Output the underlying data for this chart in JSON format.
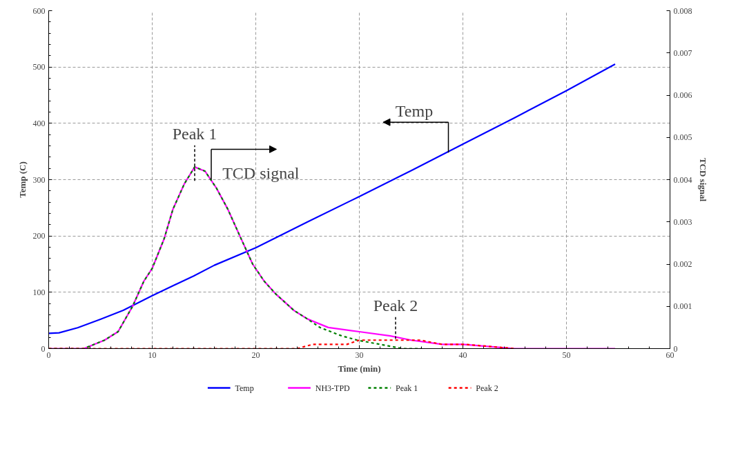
{
  "chart_data": {
    "type": "line",
    "xlabel": "Time (min)",
    "ylabel": "Temp (C)",
    "y2label": "TCD signal",
    "xlim": [
      0,
      60
    ],
    "xticks": [
      0,
      10,
      20,
      30,
      40,
      50,
      60
    ],
    "ylim": [
      0,
      600
    ],
    "yticks": [
      0,
      100,
      200,
      300,
      400,
      500,
      600
    ],
    "y2lim": [
      0,
      0.008
    ],
    "y2ticks": [
      0,
      0.001,
      0.002,
      0.003,
      0.004,
      0.005,
      0.006,
      0.007,
      0.008
    ],
    "grid": true,
    "legend": "bottom",
    "marker": "none",
    "series": [
      {
        "name": "Temp",
        "color": "#0000ff",
        "line_style": "solid",
        "x": [
          0,
          1,
          2.8,
          5,
          7.2,
          10,
          14,
          16,
          20,
          25,
          30,
          35,
          40,
          45,
          50,
          54.7
        ],
        "values": [
          27,
          28,
          37,
          52,
          68,
          94,
          129,
          148,
          179,
          225,
          270,
          316,
          363,
          410,
          458,
          505
        ]
      },
      {
        "name": "NH3-TPD",
        "color": "#ff00ff",
        "line_style": "solid",
        "axis": "y2",
        "x": [
          0,
          2,
          3.4,
          5.4,
          6.7,
          8.1,
          9.2,
          10,
          11.15,
          12,
          13.1,
          14.1,
          15.1,
          16.2,
          17.3,
          18.4,
          19.7,
          20.8,
          21.9,
          23.7,
          25,
          27,
          30,
          33,
          35,
          38,
          40,
          45,
          50,
          54.7
        ],
        "values": [
          0,
          0,
          0,
          0.0002,
          0.0004,
          0.001,
          0.0016,
          0.0019,
          0.0026,
          0.0033,
          0.0039,
          0.0043,
          0.0042,
          0.0038,
          0.0033,
          0.0027,
          0.002,
          0.0016,
          0.0013,
          0.0009,
          0.0007,
          0.0005,
          0.0004,
          0.0003,
          0.0002,
          0.0001,
          0.0001,
          0,
          0,
          0
        ]
      },
      {
        "name": "Peak 1",
        "color": "#008000",
        "line_style": "dashed",
        "axis": "y2",
        "x": [
          0,
          2,
          3.4,
          5.4,
          6.7,
          8.1,
          9.2,
          10,
          11.15,
          12,
          13.1,
          14.1,
          15.1,
          16.2,
          17.3,
          18.4,
          19.7,
          20.8,
          21.9,
          23.7,
          25,
          26.2,
          28.3,
          29.8,
          32,
          34.2,
          36
        ],
        "values": [
          0,
          0,
          0,
          0.0002,
          0.0004,
          0.001,
          0.0016,
          0.0019,
          0.0026,
          0.0033,
          0.0039,
          0.0043,
          0.0042,
          0.0038,
          0.0033,
          0.0027,
          0.002,
          0.0016,
          0.0013,
          0.0009,
          0.0007,
          0.0005,
          0.0003,
          0.0002,
          0.0001,
          0,
          0
        ]
      },
      {
        "name": "Peak 2",
        "color": "#ff0000",
        "line_style": "dashed",
        "axis": "y2",
        "x": [
          0,
          10,
          20,
          24,
          25.5,
          27.6,
          28.8,
          30,
          32.4,
          33.5,
          35.9,
          38,
          40.2,
          45
        ],
        "values": [
          0,
          0,
          0,
          0,
          0.0001,
          0.0001,
          0.0001,
          0.0002,
          0.0002,
          0.0002,
          0.0002,
          0.0001,
          0.0001,
          0
        ]
      }
    ],
    "annotations": [
      {
        "text": "Peak 1",
        "x": 14.1,
        "y": 322
      },
      {
        "text": "TCD signal",
        "x": 15.7,
        "y": 300
      },
      {
        "text": "Temp",
        "x": 38.6,
        "y": 348
      },
      {
        "text": "Peak 2",
        "x": 33.5,
        "y": 17
      }
    ]
  }
}
